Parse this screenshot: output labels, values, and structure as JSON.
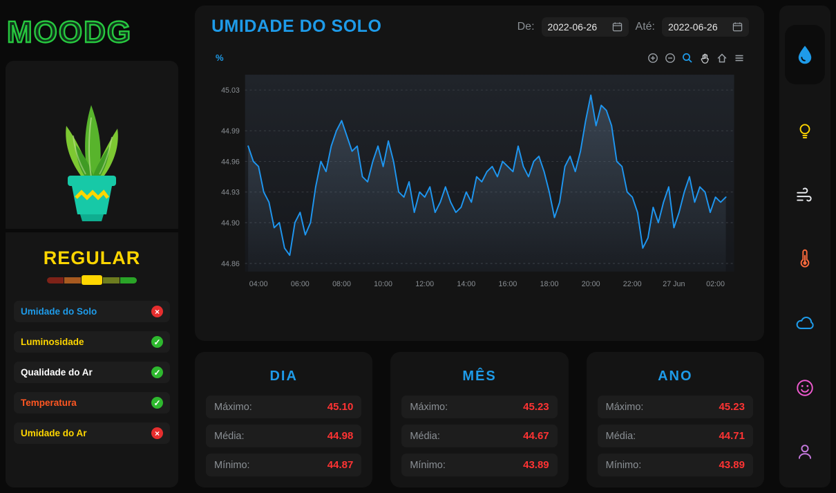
{
  "logo": {
    "text": "MOODG"
  },
  "colors": {
    "accent_blue": "#1e9be9",
    "alert_red": "#ff3333",
    "ok_green": "#2eb82e",
    "bad_red": "#e62e2e",
    "warn_yellow": "#ffd600",
    "logo_green": "#27c93f"
  },
  "sidebar": {
    "status_label": "REGULAR",
    "gauge": {
      "colors": [
        "#7e2218",
        "#a85a20",
        "#ffd600",
        "#6d7c1f",
        "#2aa427"
      ],
      "active_index": 2
    },
    "metrics": [
      {
        "label": "Umidade do Solo",
        "color": "#1e9be9",
        "status": "bad"
      },
      {
        "label": "Luminosidade",
        "color": "#ffd600",
        "status": "ok"
      },
      {
        "label": "Qualidade do Ar",
        "color": "#ffffff",
        "status": "ok"
      },
      {
        "label": "Temperatura",
        "color": "#ff5722",
        "status": "ok"
      },
      {
        "label": "Umidade do Ar",
        "color": "#ffd600",
        "status": "bad"
      }
    ]
  },
  "header": {
    "title": "UMIDADE DO SOLO",
    "date_from_label": "De:",
    "date_to_label": "Até:",
    "date_from": "2022-06-26",
    "date_to": "2022-06-26"
  },
  "toolbar": {
    "icons": [
      "zoom-in",
      "zoom-out",
      "zoom",
      "pan",
      "home",
      "menu"
    ]
  },
  "chart_data": {
    "type": "line",
    "title": "UMIDADE DO SOLO",
    "ylabel": "%",
    "line_color": "#1e96f0",
    "grid": "horizontal-dashed",
    "x_range": [
      3.35,
      26.9
    ],
    "y_range": [
      44.852,
      45.045
    ],
    "x_start": 3.5,
    "x_step": 0.25,
    "y_ticks": [
      {
        "v": 45.03,
        "label": "45.03"
      },
      {
        "v": 44.99,
        "label": "44.99"
      },
      {
        "v": 44.96,
        "label": "44.96"
      },
      {
        "v": 44.93,
        "label": "44.93"
      },
      {
        "v": 44.9,
        "label": "44.90"
      },
      {
        "v": 44.86,
        "label": "44.86"
      }
    ],
    "x_ticks": [
      {
        "v": 4,
        "label": "04:00"
      },
      {
        "v": 6,
        "label": "06:00"
      },
      {
        "v": 8,
        "label": "08:00"
      },
      {
        "v": 10,
        "label": "10:00"
      },
      {
        "v": 12,
        "label": "12:00"
      },
      {
        "v": 14,
        "label": "14:00"
      },
      {
        "v": 16,
        "label": "16:00"
      },
      {
        "v": 18,
        "label": "18:00"
      },
      {
        "v": 20,
        "label": "20:00"
      },
      {
        "v": 22,
        "label": "22:00"
      },
      {
        "v": 24,
        "label": "27 Jun"
      },
      {
        "v": 26,
        "label": "02:00"
      }
    ],
    "series": [
      {
        "name": "Umidade do Solo",
        "values": [
          44.975,
          44.96,
          44.955,
          44.93,
          44.92,
          44.895,
          44.9,
          44.875,
          44.868,
          44.9,
          44.91,
          44.888,
          44.9,
          44.935,
          44.96,
          44.95,
          44.975,
          44.99,
          45.0,
          44.985,
          44.97,
          44.975,
          44.945,
          44.94,
          44.96,
          44.975,
          44.955,
          44.98,
          44.96,
          44.93,
          44.925,
          44.94,
          44.91,
          44.93,
          44.925,
          44.935,
          44.91,
          44.92,
          44.935,
          44.92,
          44.91,
          44.915,
          44.93,
          44.92,
          44.945,
          44.94,
          44.95,
          44.955,
          44.945,
          44.96,
          44.955,
          44.95,
          44.975,
          44.955,
          44.945,
          44.96,
          44.965,
          44.95,
          44.93,
          44.905,
          44.92,
          44.955,
          44.965,
          44.95,
          44.97,
          45.0,
          45.025,
          44.995,
          45.015,
          45.01,
          44.995,
          44.96,
          44.955,
          44.93,
          44.925,
          44.91,
          44.875,
          44.885,
          44.915,
          44.9,
          44.92,
          44.935,
          44.895,
          44.91,
          44.93,
          44.945,
          44.92,
          44.935,
          44.93,
          44.91,
          44.925,
          44.92,
          44.925
        ]
      }
    ]
  },
  "stats": {
    "cards": [
      {
        "title": "DIA",
        "rows": [
          [
            "Máximo:",
            "45.10"
          ],
          [
            "Média:",
            "44.98"
          ],
          [
            "Mínimo:",
            "44.87"
          ]
        ]
      },
      {
        "title": "MÊS",
        "rows": [
          [
            "Máximo:",
            "45.23"
          ],
          [
            "Média:",
            "44.67"
          ],
          [
            "Mínimo:",
            "43.89"
          ]
        ]
      },
      {
        "title": "ANO",
        "rows": [
          [
            "Máximo:",
            "45.23"
          ],
          [
            "Média:",
            "44.71"
          ],
          [
            "Mínimo:",
            "43.89"
          ]
        ]
      }
    ]
  },
  "nav": {
    "items": [
      {
        "name": "soil-humidity",
        "color": "#1e9be9",
        "active": true
      },
      {
        "name": "luminosity",
        "color": "#ffd600",
        "active": false
      },
      {
        "name": "air-quality",
        "color": "#e8eaed",
        "active": false
      },
      {
        "name": "temperature",
        "color": "#ff6a3c",
        "active": false
      },
      {
        "name": "cloud",
        "color": "#1e9be9",
        "active": false
      },
      {
        "name": "mood",
        "color": "#f05ad0",
        "active": false
      },
      {
        "name": "profile",
        "color": "#c77ae0",
        "active": false
      }
    ]
  }
}
